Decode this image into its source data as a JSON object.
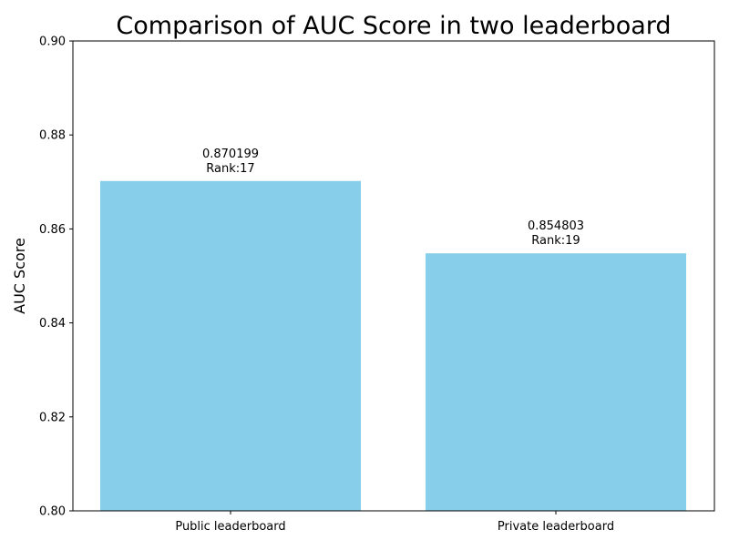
{
  "chart_data": {
    "type": "bar",
    "title": "Comparison of AUC Score in two leaderboard",
    "xlabel": "",
    "ylabel": "AUC Score",
    "categories": [
      "Public leaderboard",
      "Private leaderboard"
    ],
    "values": [
      0.870199,
      0.854803
    ],
    "value_labels": [
      "0.870199",
      "0.854803"
    ],
    "rank_labels": [
      "Rank:17",
      "Rank:19"
    ],
    "ylim": [
      0.8,
      0.9
    ],
    "yticks": [
      0.8,
      0.82,
      0.84,
      0.86,
      0.88,
      0.9
    ],
    "ytick_labels": [
      "0.80",
      "0.82",
      "0.84",
      "0.86",
      "0.88",
      "0.90"
    ],
    "grid": false,
    "colors": {
      "bar": "#87CEEB",
      "axis": "#000000",
      "text": "#000000"
    }
  }
}
